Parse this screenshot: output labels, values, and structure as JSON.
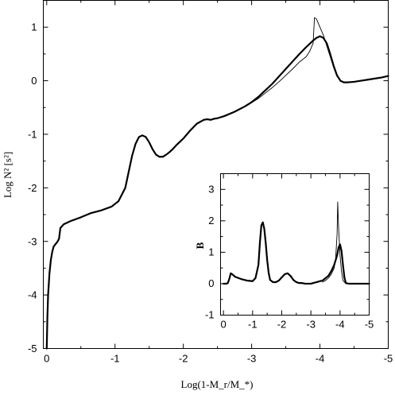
{
  "chart_data": [
    {
      "id": "main",
      "type": "line",
      "title": "",
      "xlabel": "Log(1-M_r/M_*)",
      "ylabel": "Log N² [s²]",
      "xlim": [
        0.05,
        -5
      ],
      "ylim": [
        -5,
        1.5
      ],
      "grid": false,
      "x_ticks": [
        0,
        -1,
        -2,
        -3,
        -4,
        -5
      ],
      "x_tick_labels": [
        "0",
        "-1",
        "-2",
        "-3",
        "-4",
        "-5"
      ],
      "y_ticks": [
        1,
        0,
        -1,
        -2,
        -3,
        -4,
        -5
      ],
      "y_tick_labels": [
        "1",
        "0",
        "-1",
        "-2",
        "-3",
        "-4",
        "-5"
      ],
      "series": [
        {
          "style": "thick",
          "x": [
            0.0,
            -0.01,
            -0.02,
            -0.04,
            -0.06,
            -0.08,
            -0.1,
            -0.13,
            -0.16,
            -0.18,
            -0.2,
            -0.22,
            -0.25,
            -0.35,
            -0.5,
            -0.65,
            -0.8,
            -0.95,
            -1.05,
            -1.15,
            -1.2,
            -1.25,
            -1.3,
            -1.35,
            -1.4,
            -1.45,
            -1.5,
            -1.55,
            -1.6,
            -1.65,
            -1.7,
            -1.75,
            -1.8,
            -1.85,
            -1.9,
            -2.0,
            -2.1,
            -2.2,
            -2.3,
            -2.35,
            -2.4,
            -2.45,
            -2.5,
            -2.6,
            -2.75,
            -2.9,
            -3.0,
            -3.1,
            -3.2,
            -3.3,
            -3.4,
            -3.5,
            -3.6,
            -3.7,
            -3.8,
            -3.9,
            -3.95,
            -4.0,
            -4.05,
            -4.1,
            -4.15,
            -4.2,
            -4.25,
            -4.3,
            -4.35,
            -4.4,
            -4.5,
            -4.6,
            -4.7,
            -4.8,
            -4.9,
            -5.0
          ],
          "y": [
            -5.0,
            -4.4,
            -4.0,
            -3.6,
            -3.35,
            -3.2,
            -3.1,
            -3.05,
            -3.0,
            -2.95,
            -2.75,
            -2.72,
            -2.68,
            -2.62,
            -2.55,
            -2.47,
            -2.42,
            -2.35,
            -2.25,
            -2.0,
            -1.7,
            -1.4,
            -1.18,
            -1.05,
            -1.02,
            -1.05,
            -1.15,
            -1.28,
            -1.38,
            -1.42,
            -1.42,
            -1.38,
            -1.33,
            -1.27,
            -1.2,
            -1.08,
            -0.93,
            -0.8,
            -0.73,
            -0.72,
            -0.73,
            -0.71,
            -0.7,
            -0.66,
            -0.58,
            -0.48,
            -0.4,
            -0.3,
            -0.18,
            -0.06,
            0.08,
            0.22,
            0.36,
            0.5,
            0.63,
            0.75,
            0.8,
            0.83,
            0.8,
            0.7,
            0.5,
            0.28,
            0.1,
            0.0,
            -0.03,
            -0.03,
            -0.02,
            0.0,
            0.02,
            0.04,
            0.06,
            0.09
          ]
        },
        {
          "style": "thin",
          "x": [
            -2.6,
            -2.75,
            -2.9,
            -3.0,
            -3.1,
            -3.2,
            -3.3,
            -3.4,
            -3.5,
            -3.6,
            -3.7,
            -3.8,
            -3.85,
            -3.9,
            -3.92,
            -3.95,
            -4.0,
            -4.05,
            -4.1,
            -4.15,
            -4.2,
            -4.25,
            -4.3,
            -4.35,
            -4.4
          ],
          "y": [
            -0.66,
            -0.58,
            -0.48,
            -0.41,
            -0.33,
            -0.23,
            -0.13,
            -0.02,
            0.1,
            0.22,
            0.35,
            0.45,
            0.55,
            0.7,
            1.18,
            1.15,
            1.0,
            0.85,
            0.65,
            0.45,
            0.25,
            0.08,
            0.0,
            -0.03,
            -0.03
          ]
        }
      ]
    },
    {
      "id": "inset",
      "type": "line",
      "title": "",
      "xlabel": "",
      "ylabel": "B",
      "xlim": [
        0.1,
        -5
      ],
      "ylim": [
        -1,
        3.5
      ],
      "grid": false,
      "x_ticks": [
        0,
        -1,
        -2,
        -3,
        -4,
        -5
      ],
      "x_tick_labels": [
        "0",
        "-1",
        "-2",
        "-3",
        "-4",
        "-5"
      ],
      "y_ticks": [
        3,
        2,
        1,
        0,
        -1
      ],
      "y_tick_labels": [
        "3",
        "2",
        "1",
        "0",
        "-1"
      ],
      "series": [
        {
          "style": "thick",
          "x": [
            0.0,
            -0.1,
            -0.15,
            -0.2,
            -0.25,
            -0.3,
            -0.4,
            -0.6,
            -0.8,
            -1.0,
            -1.1,
            -1.2,
            -1.25,
            -1.3,
            -1.35,
            -1.4,
            -1.45,
            -1.5,
            -1.55,
            -1.6,
            -1.7,
            -1.8,
            -1.9,
            -2.0,
            -2.1,
            -2.2,
            -2.3,
            -2.4,
            -2.5,
            -2.6,
            -2.7,
            -2.8,
            -3.0,
            -3.2,
            -3.4,
            -3.6,
            -3.7,
            -3.8,
            -3.9,
            -3.95,
            -4.0,
            -4.05,
            -4.1,
            -4.15,
            -4.2,
            -4.3,
            -4.5,
            -5.0
          ],
          "y": [
            0.0,
            0.0,
            0.02,
            0.15,
            0.33,
            0.3,
            0.22,
            0.15,
            0.1,
            0.08,
            0.18,
            0.6,
            1.3,
            1.85,
            1.95,
            1.75,
            1.3,
            0.75,
            0.35,
            0.12,
            0.05,
            0.05,
            0.1,
            0.2,
            0.3,
            0.33,
            0.25,
            0.12,
            0.05,
            0.02,
            0.02,
            0.0,
            0.0,
            0.05,
            0.1,
            0.25,
            0.4,
            0.6,
            0.9,
            1.15,
            1.25,
            1.05,
            0.6,
            0.2,
            0.02,
            0.0,
            0.0,
            0.0
          ]
        },
        {
          "style": "thin",
          "x": [
            -3.4,
            -3.5,
            -3.6,
            -3.7,
            -3.8,
            -3.85,
            -3.9,
            -3.92,
            -3.95,
            -4.0,
            -4.05,
            -4.1,
            -4.2
          ],
          "y": [
            0.05,
            0.1,
            0.18,
            0.3,
            0.5,
            0.8,
            1.6,
            2.6,
            1.8,
            0.9,
            0.4,
            0.1,
            0.0
          ]
        }
      ]
    }
  ]
}
